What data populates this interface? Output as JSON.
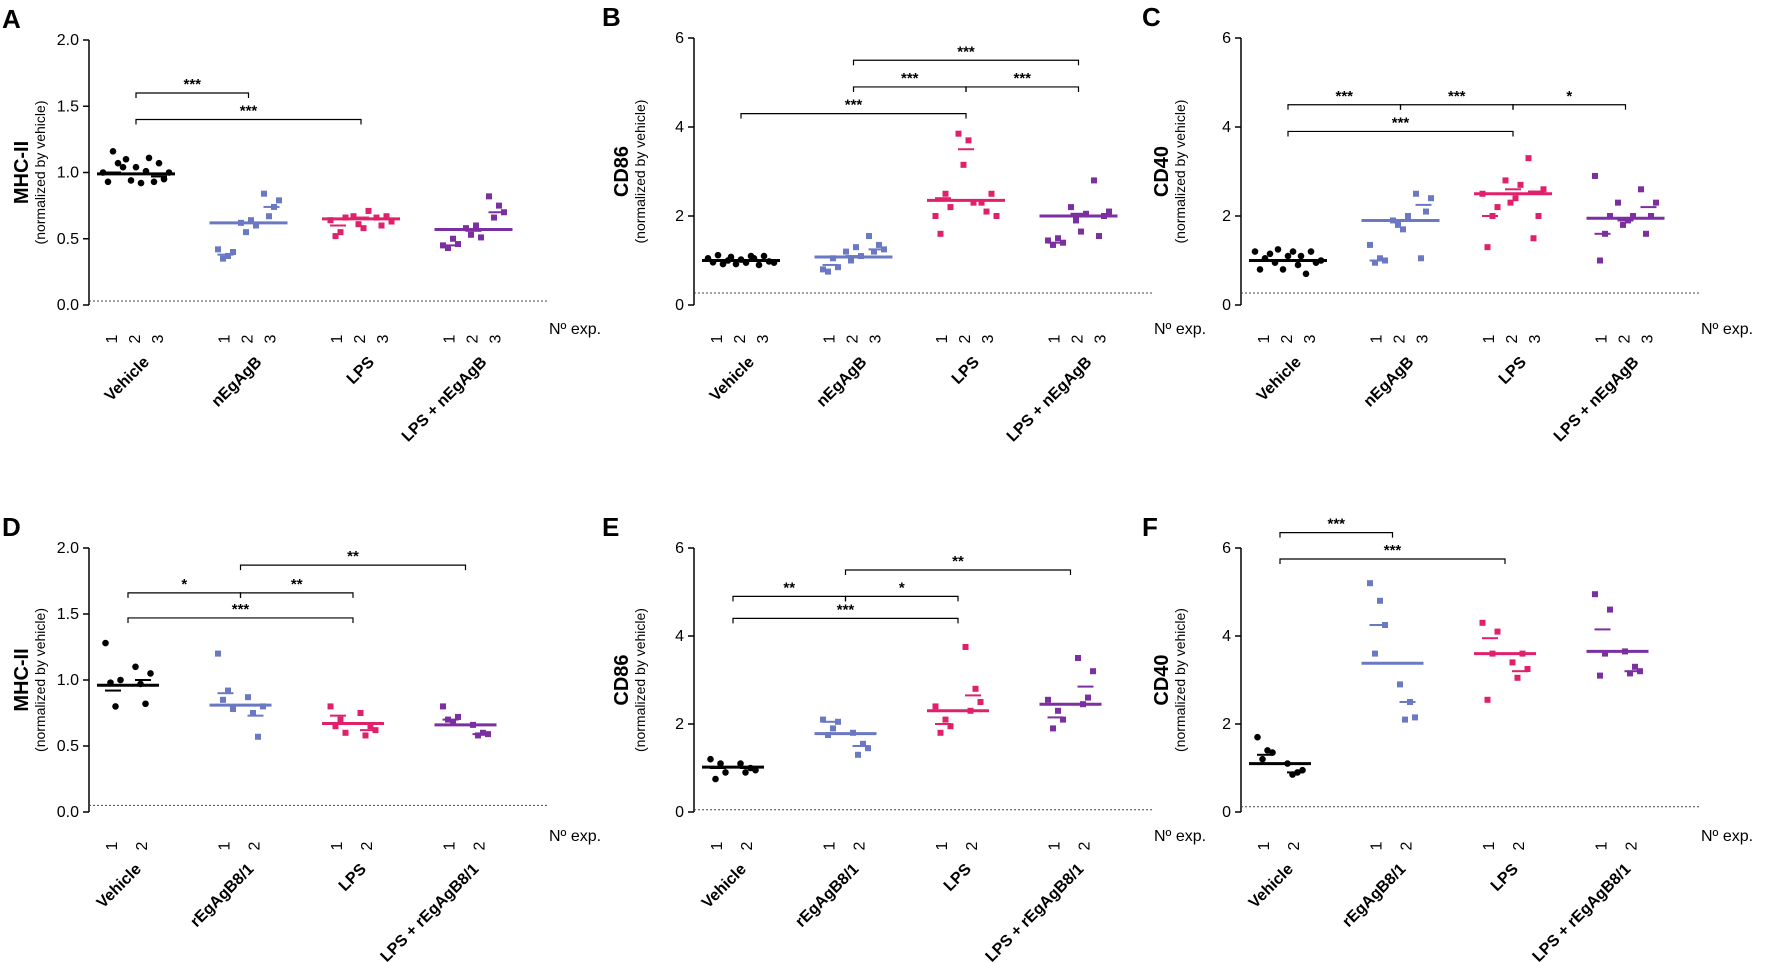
{
  "figure": {
    "group_colors": [
      "#000000",
      "#6b78c4",
      "#e0206a",
      "#7b2fa0"
    ],
    "exp_label": "Nº  exp."
  },
  "chart_data": [
    {
      "panel": "A",
      "type": "scatter",
      "title": "MHC-II",
      "ylabel": "MHC-II",
      "ysublabel": "(normalized by vehicle)",
      "ylim": [
        0,
        2.0
      ],
      "yticks": [
        "0.0",
        "0.5",
        "1.0",
        "1.5",
        "2.0"
      ],
      "ytick_values": [
        0,
        0.5,
        1.0,
        1.5,
        2.0
      ],
      "baseline": 0.03,
      "exp_numbers": [
        "1",
        "2",
        "3"
      ],
      "groups": [
        {
          "name": "Vehicle",
          "mean": 0.99,
          "exp_means": [
            1.0,
            0.99,
            0.97
          ],
          "points": [
            [
              1.0,
              0.93,
              1.16,
              1.07,
              1.04
            ],
            [
              1.1,
              0.94,
              1.04,
              0.92,
              1.01
            ],
            [
              1.11,
              0.93,
              1.07,
              0.95,
              1.0
            ]
          ]
        },
        {
          "name": "nEgAgB",
          "mean": 0.62,
          "exp_means": [
            0.38,
            0.62,
            0.74
          ],
          "points": [
            [
              0.42,
              0.35,
              0.37,
              0.4
            ],
            [
              0.62,
              0.55,
              0.64,
              0.6
            ],
            [
              0.84,
              0.67,
              0.74,
              0.79
            ]
          ]
        },
        {
          "name": "LPS",
          "mean": 0.65,
          "exp_means": [
            0.6,
            0.66,
            0.65
          ],
          "points": [
            [
              0.64,
              0.52,
              0.55,
              0.66
            ],
            [
              0.67,
              0.61,
              0.58,
              0.71
            ],
            [
              0.66,
              0.6,
              0.67,
              0.63
            ]
          ]
        },
        {
          "name": "LPS + nEgAgB",
          "mean": 0.57,
          "exp_means": [
            0.45,
            0.56,
            0.7
          ],
          "points": [
            [
              0.45,
              0.43,
              0.5,
              0.46
            ],
            [
              0.58,
              0.53,
              0.6,
              0.51
            ],
            [
              0.82,
              0.66,
              0.75,
              0.7
            ]
          ]
        }
      ],
      "significance": [
        {
          "from": 0,
          "to": 1,
          "y": 1.6,
          "label": "***"
        },
        {
          "from": 0,
          "to": 2,
          "y": 1.4,
          "label": "***"
        }
      ]
    },
    {
      "panel": "B",
      "type": "scatter",
      "title": "CD86",
      "ylabel": "CD86",
      "ysublabel": "(normalized by vehicle)",
      "ylim": [
        0,
        6
      ],
      "yticks": [
        "0",
        "2",
        "4",
        "6"
      ],
      "ytick_values": [
        0,
        2,
        4,
        6
      ],
      "baseline": 0.27,
      "exp_numbers": [
        "1",
        "2",
        "3"
      ],
      "groups": [
        {
          "name": "Vehicle",
          "mean": 1.0,
          "exp_means": [
            1.0,
            1.0,
            1.0
          ],
          "points": [
            [
              1.05,
              0.96,
              1.12,
              0.92,
              1.0
            ],
            [
              1.08,
              0.92,
              1.02,
              0.95,
              1.1
            ],
            [
              1.05,
              0.9,
              1.1,
              0.98,
              0.95
            ]
          ]
        },
        {
          "name": "nEgAgB",
          "mean": 1.08,
          "exp_means": [
            0.9,
            1.1,
            1.25
          ],
          "points": [
            [
              0.8,
              0.75,
              1.05,
              0.85
            ],
            [
              1.2,
              1.0,
              1.3,
              1.1
            ],
            [
              1.55,
              1.2,
              1.35,
              1.25
            ]
          ]
        },
        {
          "name": "LPS",
          "mean": 2.35,
          "exp_means": [
            2.4,
            3.5,
            2.35
          ],
          "points": [
            [
              2.0,
              1.6,
              2.5,
              2.2
            ],
            [
              3.85,
              3.15,
              3.7,
              2.3
            ],
            [
              2.3,
              2.1,
              2.5,
              2.0
            ]
          ]
        },
        {
          "name": "LPS + nEgAgB",
          "mean": 2.0,
          "exp_means": [
            1.4,
            2.05,
            2.0
          ],
          "points": [
            [
              1.45,
              1.35,
              1.5,
              1.4
            ],
            [
              2.2,
              1.9,
              1.65,
              2.05
            ],
            [
              2.8,
              1.55,
              2.0,
              2.1
            ]
          ]
        }
      ],
      "significance": [
        {
          "from": 1,
          "to": 3,
          "y": 5.5,
          "label": "***"
        },
        {
          "from": 1,
          "to": 2,
          "y": 4.9,
          "label": "***"
        },
        {
          "from": 2,
          "to": 3,
          "y": 4.9,
          "label": "***"
        },
        {
          "from": 0,
          "to": 2,
          "y": 4.3,
          "label": "***"
        }
      ]
    },
    {
      "panel": "C",
      "type": "scatter",
      "title": "CD40",
      "ylabel": "CD40",
      "ysublabel": "(normalized by vehicle)",
      "ylim": [
        0,
        6
      ],
      "yticks": [
        "0",
        "2",
        "4",
        "6"
      ],
      "ytick_values": [
        0,
        2,
        4,
        6
      ],
      "baseline": 0.27,
      "exp_numbers": [
        "1",
        "2",
        "3"
      ],
      "groups": [
        {
          "name": "Vehicle",
          "mean": 1.0,
          "exp_means": [
            1.0,
            1.0,
            1.0
          ],
          "points": [
            [
              1.2,
              0.8,
              1.05,
              1.15,
              0.95
            ],
            [
              1.25,
              0.8,
              1.1,
              1.2,
              0.9
            ],
            [
              1.1,
              0.7,
              1.2,
              0.95,
              1.0
            ]
          ]
        },
        {
          "name": "nEgAgB",
          "mean": 1.9,
          "exp_means": [
            1.0,
            1.9,
            2.25
          ],
          "points": [
            [
              1.35,
              0.95,
              1.05,
              1.0
            ],
            [
              1.9,
              1.8,
              1.7,
              2.0
            ],
            [
              2.5,
              1.05,
              2.1,
              2.4
            ]
          ]
        },
        {
          "name": "LPS",
          "mean": 2.5,
          "exp_means": [
            2.0,
            2.6,
            2.55
          ],
          "points": [
            [
              2.5,
              1.3,
              2.0,
              2.2
            ],
            [
              2.8,
              2.3,
              2.4,
              2.7
            ],
            [
              3.3,
              1.5,
              2.0,
              2.6
            ]
          ]
        },
        {
          "name": "LPS + nEgAgB",
          "mean": 1.95,
          "exp_means": [
            1.6,
            1.9,
            2.2
          ],
          "points": [
            [
              2.9,
              1.0,
              1.6,
              2.0
            ],
            [
              2.3,
              1.8,
              1.9,
              2.0
            ],
            [
              2.6,
              1.6,
              2.0,
              2.3
            ]
          ]
        }
      ],
      "significance": [
        {
          "from": 0,
          "to": 1,
          "y": 4.5,
          "label": "***"
        },
        {
          "from": 1,
          "to": 2,
          "y": 4.5,
          "label": "***"
        },
        {
          "from": 2,
          "to": 3,
          "y": 4.5,
          "label": "*"
        },
        {
          "from": 0,
          "to": 2,
          "y": 3.9,
          "label": "***"
        }
      ]
    },
    {
      "panel": "D",
      "type": "scatter",
      "title": "MHC-II",
      "ylabel": "MHC-II",
      "ysublabel": "(normalized by vehicle)",
      "ylim": [
        0,
        2.0
      ],
      "yticks": [
        "0.0",
        "0.5",
        "1.0",
        "1.5",
        "2.0"
      ],
      "ytick_values": [
        0,
        0.5,
        1.0,
        1.5,
        2.0
      ],
      "baseline": 0.05,
      "exp_numbers": [
        "1",
        "2"
      ],
      "groups": [
        {
          "name": "Vehicle",
          "mean": 0.96,
          "exp_means": [
            0.92,
            1.0
          ],
          "points": [
            [
              1.28,
              0.98,
              0.8,
              1.0
            ],
            [
              1.1,
              0.97,
              0.82,
              1.05
            ]
          ]
        },
        {
          "name": "rEgAgB8/1",
          "mean": 0.81,
          "exp_means": [
            0.9,
            0.73
          ],
          "points": [
            [
              1.2,
              0.85,
              0.92,
              0.78
            ],
            [
              0.87,
              0.75,
              0.57,
              0.8
            ]
          ]
        },
        {
          "name": "LPS",
          "mean": 0.67,
          "exp_means": [
            0.73,
            0.62
          ],
          "points": [
            [
              0.8,
              0.65,
              0.7,
              0.6
            ],
            [
              0.75,
              0.58,
              0.65,
              0.62
            ]
          ]
        },
        {
          "name": "LPS + rEgAgB8/1",
          "mean": 0.66,
          "exp_means": [
            0.7,
            0.59
          ],
          "points": [
            [
              0.8,
              0.7,
              0.68,
              0.72
            ],
            [
              0.66,
              0.58,
              0.6,
              0.59
            ]
          ]
        }
      ],
      "significance": [
        {
          "from": 1,
          "to": 3,
          "y": 1.87,
          "label": "**"
        },
        {
          "from": 0,
          "to": 1,
          "y": 1.66,
          "label": "*"
        },
        {
          "from": 1,
          "to": 2,
          "y": 1.66,
          "label": "**"
        },
        {
          "from": 0,
          "to": 2,
          "y": 1.47,
          "label": "***"
        }
      ]
    },
    {
      "panel": "E",
      "type": "scatter",
      "title": "CD86",
      "ylabel": "CD86",
      "ysublabel": "(normalized by vehicle)",
      "ylim": [
        0,
        6
      ],
      "yticks": [
        "0",
        "2",
        "4",
        "6"
      ],
      "ytick_values": [
        0,
        2,
        4,
        6
      ],
      "baseline": 0.05,
      "exp_numbers": [
        "1",
        "2"
      ],
      "groups": [
        {
          "name": "Vehicle",
          "mean": 1.02,
          "exp_means": [
            1.0,
            1.0
          ],
          "points": [
            [
              1.2,
              0.75,
              1.1,
              0.9
            ],
            [
              1.1,
              0.9,
              1.0,
              0.95
            ]
          ]
        },
        {
          "name": "rEgAgB8/1",
          "mean": 1.78,
          "exp_means": [
            2.05,
            1.5
          ],
          "points": [
            [
              2.1,
              1.75,
              1.9,
              2.05
            ],
            [
              1.8,
              1.3,
              1.55,
              1.45
            ]
          ]
        },
        {
          "name": "LPS",
          "mean": 2.3,
          "exp_means": [
            2.0,
            2.65
          ],
          "points": [
            [
              2.4,
              1.8,
              2.1,
              1.95
            ],
            [
              3.75,
              2.3,
              2.8,
              2.5
            ]
          ]
        },
        {
          "name": "LPS + rEgAgB8/1",
          "mean": 2.45,
          "exp_means": [
            2.15,
            2.85
          ],
          "points": [
            [
              2.55,
              1.9,
              2.3,
              2.1
            ],
            [
              3.5,
              2.45,
              2.6,
              3.2
            ]
          ]
        }
      ],
      "significance": [
        {
          "from": 1,
          "to": 3,
          "y": 5.5,
          "label": "**"
        },
        {
          "from": 0,
          "to": 1,
          "y": 4.9,
          "label": "**"
        },
        {
          "from": 1,
          "to": 2,
          "y": 4.9,
          "label": "*"
        },
        {
          "from": 0,
          "to": 2,
          "y": 4.4,
          "label": "***"
        }
      ]
    },
    {
      "panel": "F",
      "type": "scatter",
      "title": "CD40",
      "ylabel": "CD40",
      "ysublabel": "(normalized by vehicle)",
      "ylim": [
        0,
        6
      ],
      "yticks": [
        "0",
        "2",
        "4",
        "6"
      ],
      "ytick_values": [
        0,
        2,
        4,
        6
      ],
      "baseline": 0.12,
      "exp_numbers": [
        "1",
        "2"
      ],
      "groups": [
        {
          "name": "Vehicle",
          "mean": 1.1,
          "exp_means": [
            1.3,
            0.9
          ],
          "points": [
            [
              1.7,
              1.2,
              1.4,
              1.35
            ],
            [
              1.1,
              0.85,
              0.9,
              0.95
            ]
          ]
        },
        {
          "name": "rEgAgB8/1",
          "mean": 3.38,
          "exp_means": [
            4.25,
            2.5
          ],
          "points": [
            [
              5.2,
              3.6,
              4.8,
              4.25
            ],
            [
              2.9,
              2.1,
              2.5,
              2.15
            ]
          ]
        },
        {
          "name": "LPS",
          "mean": 3.6,
          "exp_means": [
            3.95,
            3.2
          ],
          "points": [
            [
              4.3,
              2.55,
              3.6,
              4.1
            ],
            [
              3.4,
              3.05,
              3.6,
              3.25
            ]
          ]
        },
        {
          "name": "LPS + rEgAgB8/1",
          "mean": 3.65,
          "exp_means": [
            4.15,
            3.2
          ],
          "points": [
            [
              4.95,
              3.1,
              3.6,
              4.6
            ],
            [
              3.65,
              3.15,
              3.3,
              3.2
            ]
          ]
        }
      ],
      "significance": [
        {
          "from": 0,
          "to": 1,
          "y": 6.35,
          "label": "***"
        },
        {
          "from": 0,
          "to": 2,
          "y": 5.75,
          "label": "***"
        }
      ]
    }
  ]
}
